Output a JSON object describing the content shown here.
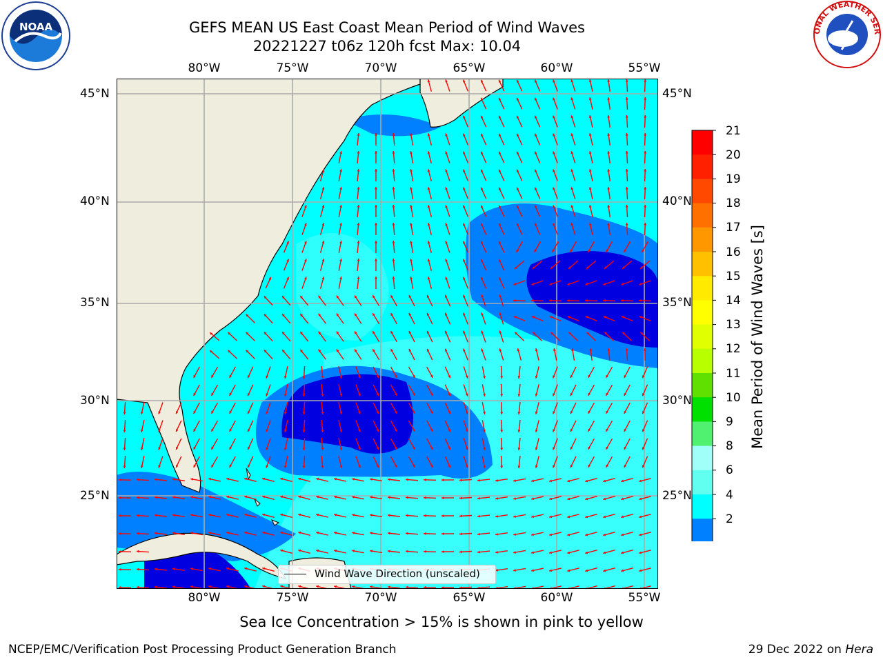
{
  "title": {
    "line1": "GEFS MEAN US East Coast Mean Period of Wind Waves",
    "line2": "20221227 t06z 120h fcst   Max: 10.04"
  },
  "map": {
    "lon_labels": [
      "80°W",
      "75°W",
      "70°W",
      "65°W",
      "60°W",
      "55°W"
    ],
    "lat_labels": [
      "45°N",
      "40°N",
      "35°N",
      "30°N",
      "25°N"
    ],
    "lon_range": [
      -85,
      -54
    ],
    "lat_range": [
      20.5,
      46
    ],
    "field": "Mean Period of Wind Waves",
    "vector_field": "Wind Wave Direction (unscaled)",
    "colors": {
      "land": "#efedde",
      "ocean_low": "#0080ff",
      "ocean_mid": "#00ffff",
      "ocean_high": "#80ffff",
      "deep": "#0000e0",
      "arrow": "#ff0000",
      "grid": "#aaaaaa"
    }
  },
  "colorbar": {
    "title": "Mean Period of Wind Waves [s]",
    "ticks": [
      "21",
      "20",
      "19",
      "18",
      "17",
      "16",
      "15",
      "14",
      "13",
      "12",
      "11",
      "10",
      "9",
      "8",
      "6",
      "4",
      "2"
    ],
    "colors": [
      "#ff0000",
      "#ff2000",
      "#ff4800",
      "#ff7000",
      "#ff9800",
      "#ffc000",
      "#ffea00",
      "#ffff00",
      "#e0ff00",
      "#b8ff00",
      "#60e000",
      "#00e000",
      "#50f070",
      "#a0fff8",
      "#60fff0",
      "#00ffff",
      "#0080ff",
      "#0000ff"
    ]
  },
  "legend": {
    "label": "Wind Wave Direction (unscaled)"
  },
  "note": "Sea Ice Concentration > 15% is shown in pink to yellow",
  "footer": {
    "left": "NCEP/EMC/Verification Post Processing Product Generation Branch",
    "right_date": "29 Dec 2022 on ",
    "right_host": "Hera"
  },
  "logos": {
    "left": "NOAA",
    "right": "NATIONAL WEATHER SERVICE"
  }
}
